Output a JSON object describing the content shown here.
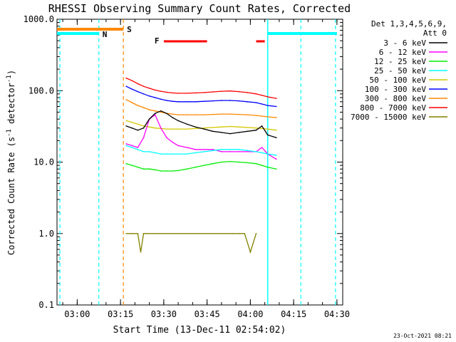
{
  "chart_data": {
    "type": "line",
    "title": "RHESSI Observing Summary Count Rates, Corrected",
    "xlabel": "Start Time (13-Dec-11 02:54:02)",
    "ylabel_main": "Corrected Count Rate (s",
    "ylabel_sup1": "-1",
    "ylabel_mid": " detector",
    "ylabel_sup2": "-1",
    "ylabel_end": ")",
    "y_scale": "log",
    "ylim": [
      0.1,
      1000
    ],
    "y_ticks": [
      {
        "value": 0.1,
        "label": "0.1"
      },
      {
        "value": 1,
        "label": "1.0"
      },
      {
        "value": 10,
        "label": "10.0"
      },
      {
        "value": 100,
        "label": "100.0"
      },
      {
        "value": 1000,
        "label": "1000.0"
      }
    ],
    "x_ticks": [
      "03:00",
      "03:15",
      "03:30",
      "03:45",
      "04:00",
      "04:15",
      "04:30"
    ],
    "legend": {
      "header1": "Det 1,3,4,5,6,9,",
      "header2": "Att 0",
      "placement": "right"
    },
    "series": [
      {
        "name": "3 - 6 keV",
        "color": "#000000",
        "values": [
          [
            23,
            32
          ],
          [
            25,
            30
          ],
          [
            27,
            28
          ],
          [
            29,
            30
          ],
          [
            31,
            40
          ],
          [
            33,
            48
          ],
          [
            35,
            52
          ],
          [
            37,
            48
          ],
          [
            39,
            42
          ],
          [
            41,
            38
          ],
          [
            44,
            34
          ],
          [
            47,
            31
          ],
          [
            50,
            29
          ],
          [
            53,
            27
          ],
          [
            56,
            26
          ],
          [
            59,
            25
          ],
          [
            62,
            26
          ],
          [
            65,
            27
          ],
          [
            68,
            28
          ],
          [
            70,
            32
          ],
          [
            72,
            24
          ],
          [
            75,
            22
          ]
        ]
      },
      {
        "name": "6 - 12 keV",
        "color": "#ff00ff",
        "values": [
          [
            23,
            18
          ],
          [
            25,
            17
          ],
          [
            27,
            16
          ],
          [
            29,
            22
          ],
          [
            31,
            40
          ],
          [
            33,
            46
          ],
          [
            35,
            30
          ],
          [
            37,
            22
          ],
          [
            39,
            19
          ],
          [
            41,
            17
          ],
          [
            44,
            16
          ],
          [
            47,
            15
          ],
          [
            50,
            15
          ],
          [
            53,
            15
          ],
          [
            56,
            14
          ],
          [
            59,
            14
          ],
          [
            62,
            14
          ],
          [
            65,
            14
          ],
          [
            68,
            14
          ],
          [
            70,
            16
          ],
          [
            72,
            13
          ],
          [
            75,
            11
          ]
        ]
      },
      {
        "name": "12 - 25 keV",
        "color": "#00ee00",
        "values": [
          [
            23,
            9.5
          ],
          [
            25,
            9
          ],
          [
            27,
            8.5
          ],
          [
            29,
            8
          ],
          [
            31,
            8
          ],
          [
            33,
            7.8
          ],
          [
            35,
            7.5
          ],
          [
            37,
            7.5
          ],
          [
            39,
            7.5
          ],
          [
            41,
            7.6
          ],
          [
            44,
            8
          ],
          [
            47,
            8.5
          ],
          [
            50,
            9
          ],
          [
            53,
            9.5
          ],
          [
            56,
            10
          ],
          [
            59,
            10.2
          ],
          [
            62,
            10
          ],
          [
            65,
            9.8
          ],
          [
            68,
            9.5
          ],
          [
            70,
            9
          ],
          [
            72,
            8.5
          ],
          [
            75,
            8
          ]
        ]
      },
      {
        "name": "25 - 50 keV",
        "color": "#00ffff",
        "values": [
          [
            23,
            17
          ],
          [
            25,
            16
          ],
          [
            27,
            15
          ],
          [
            29,
            14
          ],
          [
            31,
            14
          ],
          [
            33,
            13.5
          ],
          [
            35,
            13
          ],
          [
            37,
            13
          ],
          [
            39,
            13
          ],
          [
            41,
            13
          ],
          [
            44,
            13
          ],
          [
            47,
            13.5
          ],
          [
            50,
            14
          ],
          [
            53,
            14.5
          ],
          [
            56,
            15
          ],
          [
            59,
            15
          ],
          [
            62,
            15
          ],
          [
            65,
            14.5
          ],
          [
            68,
            14
          ],
          [
            70,
            13.5
          ],
          [
            72,
            13
          ],
          [
            75,
            12.5
          ]
        ]
      },
      {
        "name": "50 - 100 keV",
        "color": "#d4c800",
        "values": [
          [
            23,
            38
          ],
          [
            25,
            36
          ],
          [
            27,
            34
          ],
          [
            29,
            32
          ],
          [
            31,
            31
          ],
          [
            33,
            30
          ],
          [
            35,
            29.5
          ],
          [
            37,
            29
          ],
          [
            39,
            29
          ],
          [
            41,
            29
          ],
          [
            44,
            29
          ],
          [
            47,
            29.5
          ],
          [
            50,
            30
          ],
          [
            53,
            30.5
          ],
          [
            56,
            31
          ],
          [
            59,
            31.5
          ],
          [
            62,
            31
          ],
          [
            65,
            30.5
          ],
          [
            68,
            30
          ],
          [
            70,
            29.5
          ],
          [
            72,
            29
          ],
          [
            75,
            28
          ]
        ]
      },
      {
        "name": "100 - 300 keV",
        "color": "#0000ff",
        "values": [
          [
            23,
            115
          ],
          [
            25,
            105
          ],
          [
            27,
            97
          ],
          [
            29,
            90
          ],
          [
            31,
            84
          ],
          [
            33,
            80
          ],
          [
            35,
            76
          ],
          [
            37,
            73
          ],
          [
            39,
            71
          ],
          [
            41,
            70
          ],
          [
            44,
            70
          ],
          [
            47,
            70
          ],
          [
            50,
            71
          ],
          [
            53,
            72
          ],
          [
            56,
            73
          ],
          [
            59,
            73
          ],
          [
            62,
            72
          ],
          [
            65,
            70
          ],
          [
            68,
            68
          ],
          [
            70,
            65
          ],
          [
            72,
            62
          ],
          [
            75,
            60
          ]
        ]
      },
      {
        "name": "300 - 800 keV",
        "color": "#ff8800",
        "values": [
          [
            23,
            75
          ],
          [
            25,
            68
          ],
          [
            27,
            62
          ],
          [
            29,
            58
          ],
          [
            31,
            54
          ],
          [
            33,
            52
          ],
          [
            35,
            50
          ],
          [
            37,
            48
          ],
          [
            39,
            47
          ],
          [
            41,
            46
          ],
          [
            44,
            46
          ],
          [
            47,
            46
          ],
          [
            50,
            46
          ],
          [
            53,
            46.5
          ],
          [
            56,
            47
          ],
          [
            59,
            47
          ],
          [
            62,
            46.5
          ],
          [
            65,
            46
          ],
          [
            68,
            45
          ],
          [
            70,
            44
          ],
          [
            72,
            43
          ],
          [
            75,
            42
          ]
        ]
      },
      {
        "name": "800 - 7000 keV",
        "color": "#ff0000",
        "values": [
          [
            23,
            150
          ],
          [
            25,
            138
          ],
          [
            27,
            125
          ],
          [
            29,
            115
          ],
          [
            31,
            108
          ],
          [
            33,
            102
          ],
          [
            35,
            98
          ],
          [
            37,
            95
          ],
          [
            39,
            93
          ],
          [
            41,
            92
          ],
          [
            44,
            92
          ],
          [
            47,
            93
          ],
          [
            50,
            94
          ],
          [
            53,
            96
          ],
          [
            56,
            98
          ],
          [
            59,
            99
          ],
          [
            62,
            97
          ],
          [
            65,
            94
          ],
          [
            68,
            90
          ],
          [
            70,
            86
          ],
          [
            72,
            82
          ],
          [
            75,
            78
          ]
        ]
      },
      {
        "name": "7000 - 15000 keV",
        "color": "#808000",
        "values": [
          [
            23,
            1
          ],
          [
            25,
            1
          ],
          [
            27,
            1
          ],
          [
            28,
            0.55
          ],
          [
            29,
            1
          ],
          [
            30,
            1
          ],
          [
            60,
            1
          ],
          [
            62,
            1
          ],
          [
            64,
            1
          ],
          [
            66,
            0.55
          ],
          [
            68,
            1
          ]
        ]
      }
    ],
    "flags": [
      {
        "label": "N",
        "color": "#00ffff"
      },
      {
        "label": "S",
        "color": "#ff8800"
      },
      {
        "label": "F",
        "color": "#ff0000"
      }
    ]
  },
  "footer": {
    "timestamp": "23-Oct-2021 08:21"
  }
}
